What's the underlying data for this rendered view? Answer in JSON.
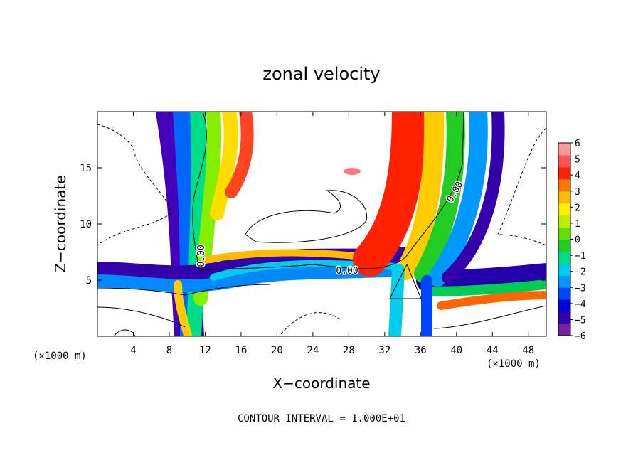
{
  "chart_data": {
    "type": "heatmap",
    "title": "zonal velocity",
    "xlabel": "X−coordinate",
    "ylabel": "Z−coordinate",
    "x_unit_left": "(×1000 m)",
    "x_unit_right": "(×1000 m)",
    "footer": "CONTOUR INTERVAL = 1.000E+01",
    "xlim": [
      0,
      50
    ],
    "ylim": [
      0,
      20
    ],
    "x_ticks": [
      4,
      8,
      12,
      16,
      20,
      24,
      28,
      32,
      36,
      40,
      44,
      48
    ],
    "y_ticks": [
      5,
      10,
      15
    ],
    "colorbar": {
      "min": -6,
      "max": 6,
      "tick_labels": [
        "6",
        "5",
        "4",
        "3",
        "2",
        "1",
        "0",
        "−1",
        "−2",
        "−3",
        "−4",
        "−5",
        "−6"
      ],
      "colors": [
        "#7a1fa2",
        "#3300aa",
        "#0000dd",
        "#0044ff",
        "#0099ff",
        "#00ccee",
        "#00dd88",
        "#22cc22",
        "#66dd00",
        "#bbee00",
        "#ffee00",
        "#ffbb00",
        "#ff7700",
        "#ff2200",
        "#ff5555",
        "#ff9999"
      ],
      "position": "right"
    },
    "contour_labels": [
      "0.00",
      "0.00",
      "0.00"
    ],
    "grid": false
  }
}
